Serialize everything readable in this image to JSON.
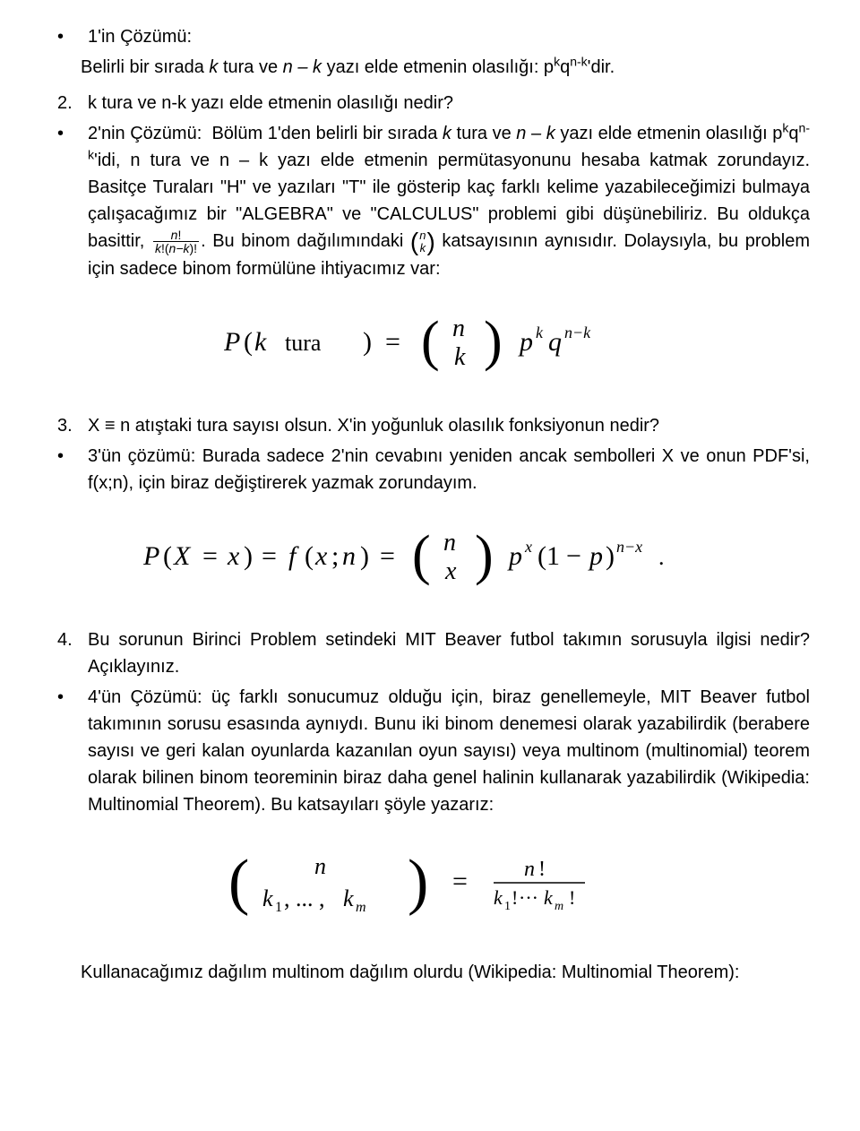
{
  "colors": {
    "text": "#000000",
    "bg": "#ffffff"
  },
  "font": {
    "family": "Arial",
    "size_body_pt": 15,
    "size_formula_pt": 22
  },
  "b1_head": "1'in Çözümü:",
  "b1_body": "Belirli bir sırada <span class=\"italic\">k</span> tura ve <span class=\"italic\">n – k</span> yazı elde etmenin olasılığı: p<sup>k</sup>q<sup>n-k</sup>'dir.",
  "q2": "k tura ve n-k yazı elde etmenin olasılığı nedir?",
  "b2_body": "2'nin Çözümü:&nbsp;&nbsp;Bölüm 1'den belirli bir sırada <span class=\"italic\">k</span> tura ve <span class=\"italic\">n – k</span> yazı elde etmenin olasılığı p<sup>k</sup>q<sup>n-k</sup>'idi, n tura ve n – k yazı elde etmenin permütasyonunu hesaba katmak zorundayız. Basitçe Turaları \"H\" ve yazıları \"T\" ile gösterip kaç farklı kelime yazabileceğimizi bulmaya çalışacağımız bir \"ALGEBRA\" ve \"CALCULUS\" problemi gibi düşünebiliriz. Bu oldukça basittir, <span class=\"frac\"><span class=\"num-f\"><span style=\"font-style:italic\">n</span>!</span><span class=\"den-f\"><span style=\"font-style:italic\">k</span>!(<span style=\"font-style:italic\">n−k</span>)!</span></span>. Bu binom dağılımındaki <span class=\"binom-inline\"><span class=\"paren-l\">(</span><span class=\"stack\"><span style=\"font-style:italic\">n</span><span style=\"font-style:italic\">k</span></span><span class=\"paren-r\">)</span></span> katsayısının aynısıdır. Dolaysıyla, bu problem için sadece binom formülüne ihtiyacımız var:",
  "formula1_latex": "P(k\\ \\text{tura}) = \\binom{n}{k} p^k q^{n-k}",
  "q3": "X ≡ n atıştaki tura sayısı olsun. X'in yoğunluk olasılık fonksiyonun nedir?",
  "b3_body": "3'ün çözümü: Burada sadece 2'nin cevabını yeniden ancak sembolleri X ve onun PDF'si, f(x;n), için biraz değiştirerek yazmak zorundayım.",
  "formula2_latex": "P(X = x) = f(x; n) = \\binom{n}{x} p^x (1-p)^{n-x}.",
  "q4": "Bu sorunun Birinci Problem setindeki MIT Beaver futbol takımın sorusuyla ilgisi nedir? Açıklayınız.",
  "b4_body": "4'ün Çözümü: üç farklı sonucumuz olduğu için, biraz genellemeyle, MIT Beaver futbol takımının sorusu esasında aynıydı. Bunu iki binom denemesi olarak yazabilirdik (berabere sayısı ve geri kalan oyunlarda kazanılan oyun sayısı) veya multinom (multinomial) teorem olarak bilinen binom teoreminin biraz daha genel halinin kullanarak yazabilirdik (Wikipedia: Multinomial Theorem). Bu katsayıları şöyle yazarız:",
  "formula3_latex": "\\binom{n}{k_1, \\ldots, k_m} = \\frac{n!}{k_1!\\cdots k_m!}",
  "closing": "Kullanacağımız dağılım multinom dağılım olurdu (Wikipedia: Multinomial Theorem):"
}
